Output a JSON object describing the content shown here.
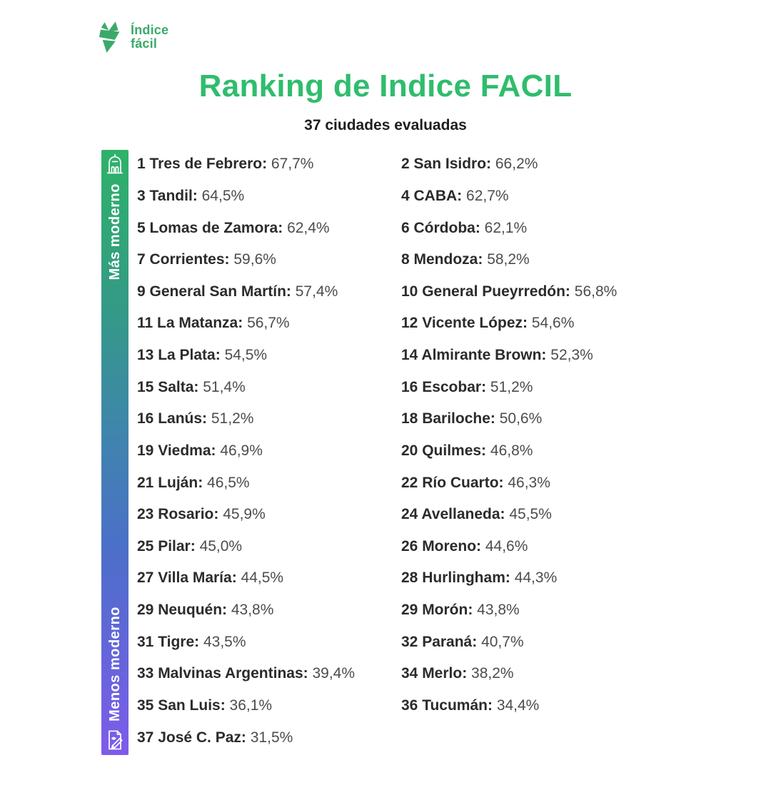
{
  "logo": {
    "line1": "Índice",
    "line2": "fácil",
    "icon": "indice-facil-logo-icon",
    "brand_color": "#3aaa6b"
  },
  "header": {
    "title": "Ranking de Indice FACIL",
    "subtitle": "37 ciudades evaluadas",
    "title_color": "#2fbd6d"
  },
  "scale_bar": {
    "top_label": "Más moderno",
    "bottom_label": "Menos moderno",
    "top_icon": "city-building-icon",
    "bottom_icon": "document-pen-icon",
    "gradient": [
      "#2eb269",
      "#349a86",
      "#3f86ab",
      "#4c6fc9",
      "#7d5cea"
    ]
  },
  "ranking": {
    "items": [
      {
        "rank": "1",
        "city": "Tres de Febrero",
        "value": "67,7%"
      },
      {
        "rank": "2",
        "city": "San Isidro",
        "value": "66,2%"
      },
      {
        "rank": "3",
        "city": "Tandil",
        "value": "64,5%"
      },
      {
        "rank": "4",
        "city": "CABA",
        "value": "62,7%"
      },
      {
        "rank": "5",
        "city": "Lomas de Zamora",
        "value": "62,4%"
      },
      {
        "rank": "6",
        "city": "Córdoba",
        "value": "62,1%"
      },
      {
        "rank": "7",
        "city": "Corrientes",
        "value": "59,6%"
      },
      {
        "rank": "8",
        "city": "Mendoza",
        "value": "58,2%"
      },
      {
        "rank": "9",
        "city": "General San Martín",
        "value": "57,4%"
      },
      {
        "rank": "10",
        "city": "General Pueyrredón",
        "value": "56,8%"
      },
      {
        "rank": "11",
        "city": "La Matanza",
        "value": "56,7%"
      },
      {
        "rank": "12",
        "city": "Vicente López",
        "value": "54,6%"
      },
      {
        "rank": "13",
        "city": "La Plata",
        "value": "54,5%"
      },
      {
        "rank": "14",
        "city": "Almirante Brown",
        "value": "52,3%"
      },
      {
        "rank": "15",
        "city": "Salta",
        "value": "51,4%"
      },
      {
        "rank": "16",
        "city": "Escobar",
        "value": "51,2%"
      },
      {
        "rank": "16",
        "city": "Lanús",
        "value": "51,2%"
      },
      {
        "rank": "18",
        "city": "Bariloche",
        "value": "50,6%"
      },
      {
        "rank": "19",
        "city": "Viedma",
        "value": "46,9%"
      },
      {
        "rank": "20",
        "city": "Quilmes",
        "value": "46,8%"
      },
      {
        "rank": "21",
        "city": "Luján",
        "value": "46,5%"
      },
      {
        "rank": "22",
        "city": "Río Cuarto",
        "value": "46,3%"
      },
      {
        "rank": "23",
        "city": "Rosario",
        "value": "45,9%"
      },
      {
        "rank": "24",
        "city": "Avellaneda",
        "value": "45,5%"
      },
      {
        "rank": "25",
        "city": "Pilar",
        "value": "45,0%"
      },
      {
        "rank": "26",
        "city": "Moreno",
        "value": "44,6%"
      },
      {
        "rank": "27",
        "city": "Villa María",
        "value": "44,5%"
      },
      {
        "rank": "28",
        "city": "Hurlingham",
        "value": "44,3%"
      },
      {
        "rank": "29",
        "city": "Neuquén",
        "value": "43,8%"
      },
      {
        "rank": "29",
        "city": "Morón",
        "value": "43,8%"
      },
      {
        "rank": "31",
        "city": "Tigre",
        "value": "43,5%"
      },
      {
        "rank": "32",
        "city": "Paraná",
        "value": "40,7%"
      },
      {
        "rank": "33",
        "city": "Malvinas Argentinas",
        "value": "39,4%"
      },
      {
        "rank": "34",
        "city": "Merlo",
        "value": "38,2%"
      },
      {
        "rank": "35",
        "city": "San Luis",
        "value": "36,1%"
      },
      {
        "rank": "36",
        "city": "Tucumán",
        "value": "34,4%"
      },
      {
        "rank": "37",
        "city": "José C. Paz",
        "value": "31,5%"
      }
    ]
  },
  "chart_data": {
    "type": "table",
    "title": "Ranking de Indice FACIL",
    "subtitle": "37 ciudades evaluadas",
    "columns": [
      "rank",
      "city",
      "indice_facil_pct"
    ],
    "rows": [
      [
        1,
        "Tres de Febrero",
        67.7
      ],
      [
        2,
        "San Isidro",
        66.2
      ],
      [
        3,
        "Tandil",
        64.5
      ],
      [
        4,
        "CABA",
        62.7
      ],
      [
        5,
        "Lomas de Zamora",
        62.4
      ],
      [
        6,
        "Córdoba",
        62.1
      ],
      [
        7,
        "Corrientes",
        59.6
      ],
      [
        8,
        "Mendoza",
        58.2
      ],
      [
        9,
        "General San Martín",
        57.4
      ],
      [
        10,
        "General Pueyrredón",
        56.8
      ],
      [
        11,
        "La Matanza",
        56.7
      ],
      [
        12,
        "Vicente López",
        54.6
      ],
      [
        13,
        "La Plata",
        54.5
      ],
      [
        14,
        "Almirante Brown",
        52.3
      ],
      [
        15,
        "Salta",
        51.4
      ],
      [
        16,
        "Escobar",
        51.2
      ],
      [
        16,
        "Lanús",
        51.2
      ],
      [
        18,
        "Bariloche",
        50.6
      ],
      [
        19,
        "Viedma",
        46.9
      ],
      [
        20,
        "Quilmes",
        46.8
      ],
      [
        21,
        "Luján",
        46.5
      ],
      [
        22,
        "Río Cuarto",
        46.3
      ],
      [
        23,
        "Rosario",
        45.9
      ],
      [
        24,
        "Avellaneda",
        45.5
      ],
      [
        25,
        "Pilar",
        45.0
      ],
      [
        26,
        "Moreno",
        44.6
      ],
      [
        27,
        "Villa María",
        44.5
      ],
      [
        28,
        "Hurlingham",
        44.3
      ],
      [
        29,
        "Neuquén",
        43.8
      ],
      [
        29,
        "Morón",
        43.8
      ],
      [
        31,
        "Tigre",
        43.5
      ],
      [
        32,
        "Paraná",
        40.7
      ],
      [
        33,
        "Malvinas Argentinas",
        39.4
      ],
      [
        34,
        "Merlo",
        38.2
      ],
      [
        35,
        "San Luis",
        36.1
      ],
      [
        36,
        "Tucumán",
        34.4
      ],
      [
        37,
        "José C. Paz",
        31.5
      ]
    ],
    "legend": "vertical gradient scale: green top = Más moderno, purple bottom = Menos moderno",
    "layout": {
      "columns_on_screen": 2,
      "order": "row-major left-to-right"
    }
  }
}
